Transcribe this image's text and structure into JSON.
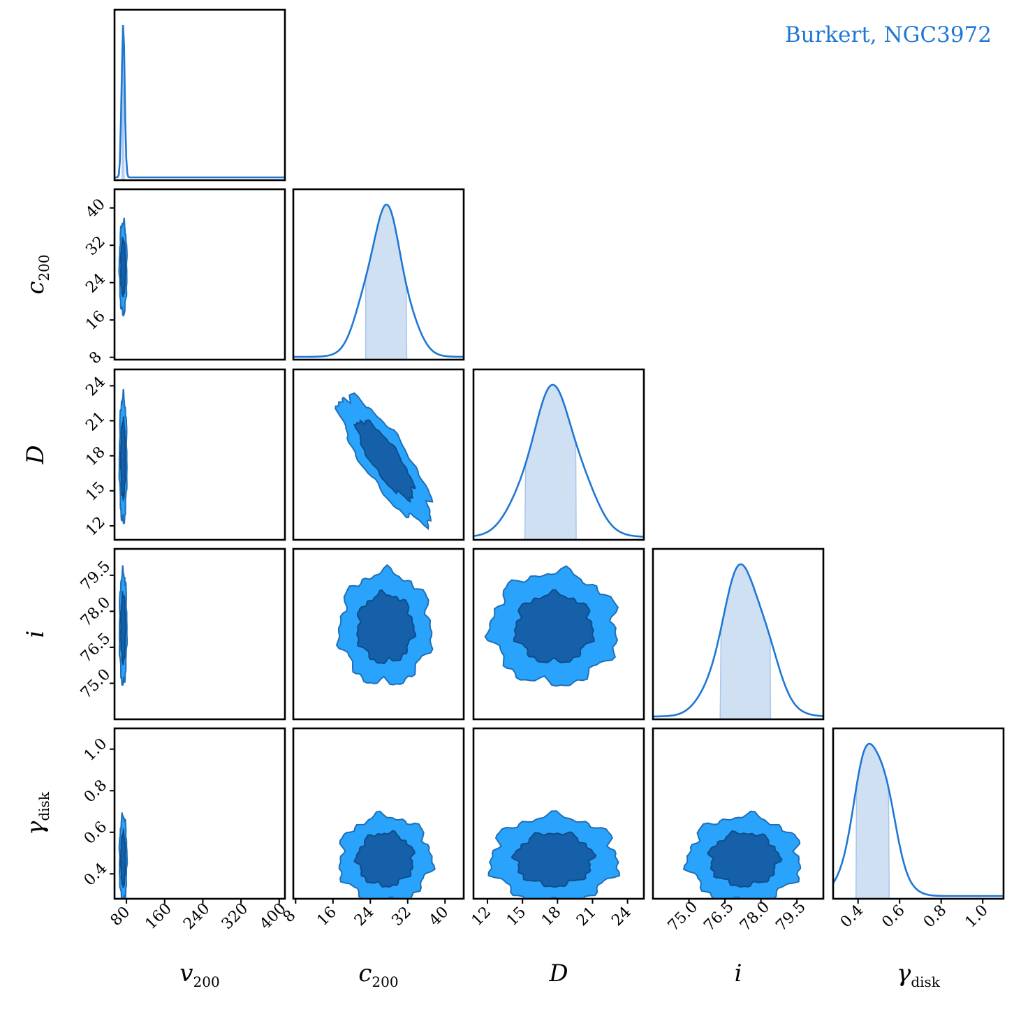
{
  "title": "Burkert, NGC3972",
  "colors": {
    "line": "#1f77d4",
    "band": "#cfe0f3",
    "contour_outer": "#29a3fb",
    "contour_inner": "#1560a8",
    "contour_edge": "#1f6fb8"
  },
  "chart_data": {
    "type": "corner",
    "parameters": [
      {
        "key": "v200",
        "label": "v",
        "sub": "200",
        "range": [
          55,
          412
        ],
        "ticks": [
          80,
          160,
          240,
          320,
          400
        ],
        "mean": 73,
        "sd": 3.2,
        "hdi": [
          71,
          75
        ]
      },
      {
        "key": "c200",
        "label": "c",
        "sub": "200",
        "range": [
          7.5,
          44
        ],
        "ticks": [
          8,
          16,
          24,
          32,
          40
        ],
        "mean": 27.2,
        "sd": 4.0,
        "hdi": [
          23.0,
          31.8
        ]
      },
      {
        "key": "D",
        "label": "D",
        "sub": "",
        "range": [
          10.8,
          25.4
        ],
        "ticks": [
          12,
          15,
          18,
          21,
          24
        ],
        "mean": 17.7,
        "sd": 2.2,
        "hdi": [
          15.2,
          19.6
        ]
      },
      {
        "key": "i",
        "label": "i",
        "sub": "",
        "range": [
          73.5,
          80.6
        ],
        "ticks": [
          75.0,
          76.5,
          78.0,
          79.5
        ],
        "tick_text": [
          "75.0",
          "76.5",
          "78.0",
          "79.5"
        ],
        "mean": 77.3,
        "sd": 0.95,
        "hdi": [
          76.3,
          78.4
        ]
      },
      {
        "key": "gamma_disk",
        "label": "γ",
        "sub": "disk",
        "range": [
          0.28,
          1.1
        ],
        "ticks": [
          0.4,
          0.6,
          0.8,
          1.0
        ],
        "tick_text": [
          "0.4",
          "0.6",
          "0.8",
          "1.0"
        ],
        "mean": 0.47,
        "sd": 0.085,
        "hdi": [
          0.39,
          0.55
        ]
      }
    ],
    "contour_levels": [
      "inner",
      "outer"
    ],
    "grid": false,
    "legend": "none",
    "title_position": "top-right"
  }
}
